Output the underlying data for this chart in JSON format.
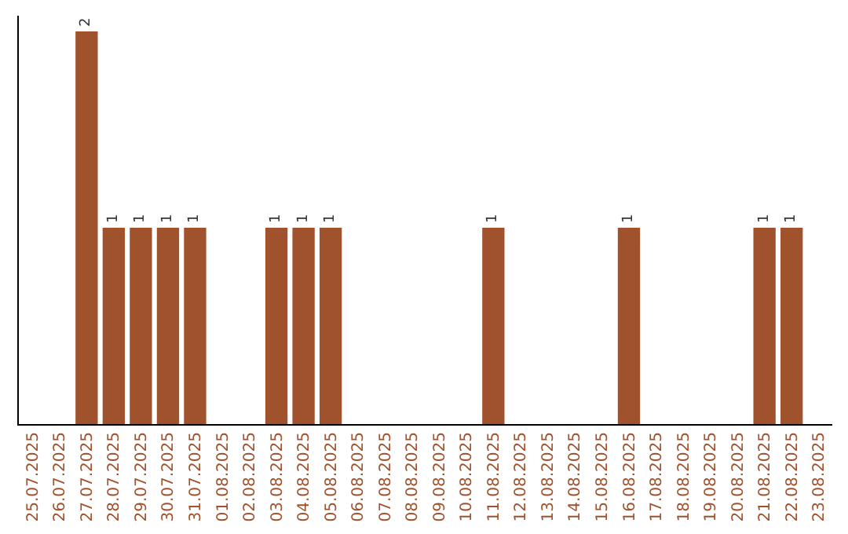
{
  "chart_data": {
    "type": "bar",
    "categories": [
      "25.07.2025",
      "26.07.2025",
      "27.07.2025",
      "28.07.2025",
      "29.07.2025",
      "30.07.2025",
      "31.07.2025",
      "01.08.2025",
      "02.08.2025",
      "03.08.2025",
      "04.08.2025",
      "05.08.2025",
      "06.08.2025",
      "07.08.2025",
      "08.08.2025",
      "09.08.2025",
      "10.08.2025",
      "11.08.2025",
      "12.08.2025",
      "13.08.2025",
      "14.08.2025",
      "15.08.2025",
      "16.08.2025",
      "17.08.2025",
      "18.08.2025",
      "19.08.2025",
      "20.08.2025",
      "21.08.2025",
      "22.08.2025",
      "23.08.2025"
    ],
    "values": [
      0,
      0,
      2,
      1,
      1,
      1,
      1,
      0,
      0,
      1,
      1,
      1,
      0,
      0,
      0,
      0,
      0,
      1,
      0,
      0,
      0,
      0,
      1,
      0,
      0,
      0,
      0,
      1,
      1,
      0
    ],
    "value_labels": [
      null,
      null,
      "2",
      "1",
      "1",
      "1",
      "1",
      null,
      null,
      "1",
      "1",
      "1",
      null,
      null,
      null,
      null,
      null,
      "1",
      null,
      null,
      null,
      null,
      "1",
      null,
      null,
      null,
      null,
      "1",
      "1",
      null
    ],
    "color": "#a0522d",
    "ylim": [
      0,
      2.08
    ],
    "tick_labels": "x",
    "grid": false,
    "legend": false
  }
}
